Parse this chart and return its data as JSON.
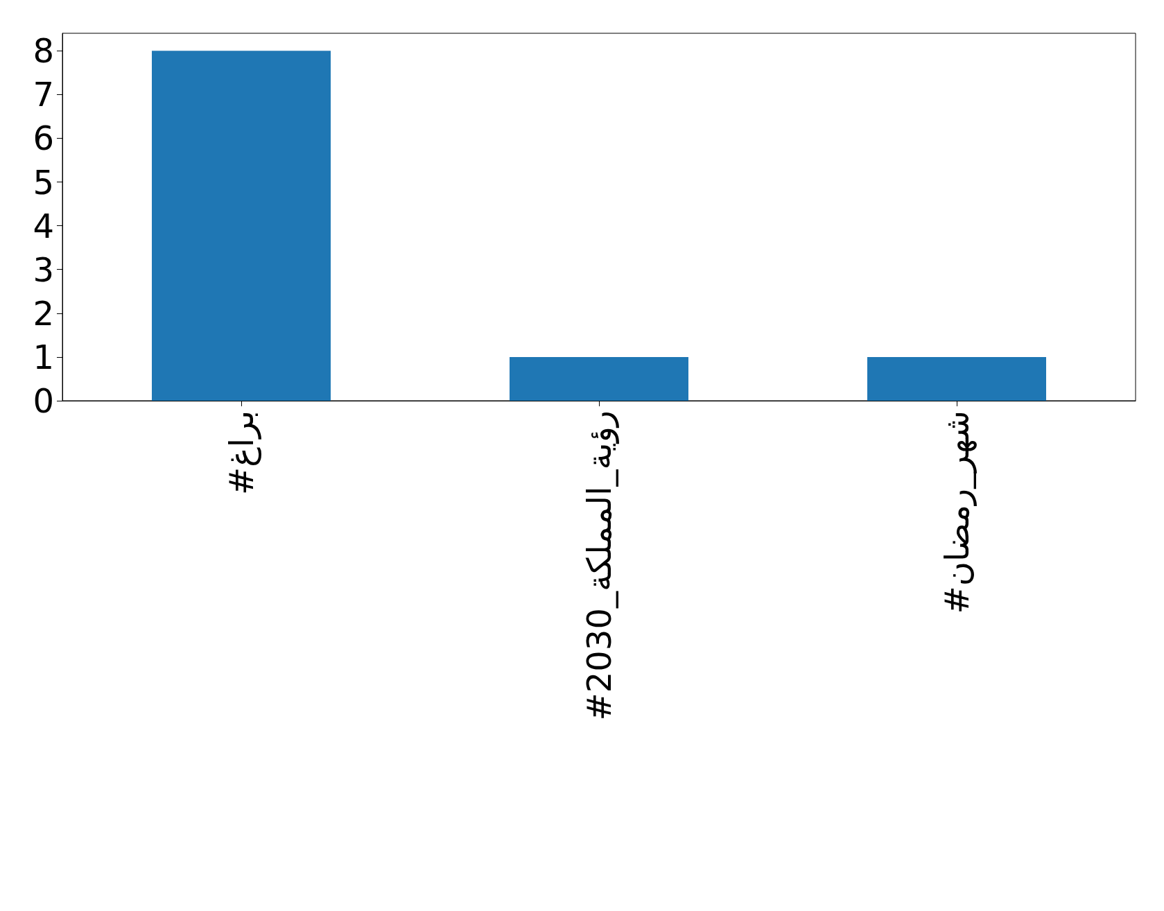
{
  "chart_data": {
    "type": "bar",
    "categories": [
      "#براغ",
      "#رؤية_المملكة_2030",
      "#شهر_رمضان"
    ],
    "values": [
      8,
      1,
      1
    ],
    "color": "#1f77b4",
    "ylim": [
      0,
      8.4
    ],
    "yticks": [
      0,
      1,
      2,
      3,
      4,
      5,
      6,
      7,
      8
    ],
    "grid": false
  }
}
